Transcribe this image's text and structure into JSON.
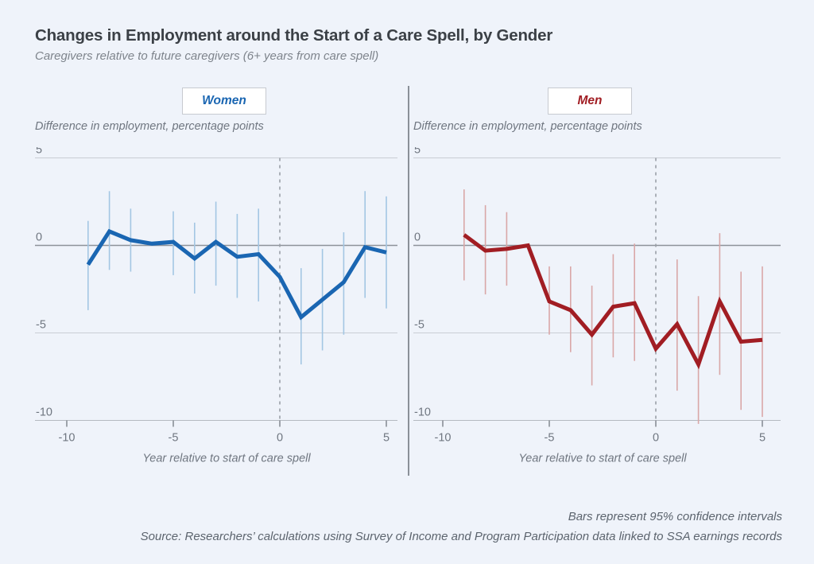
{
  "header": {
    "title": "Changes in Employment around the Start of a Care Spell, by Gender",
    "subtitle": "Caregivers relative to future caregivers (6+ years from care spell)"
  },
  "footnotes": {
    "note": "Bars represent 95% confidence intervals",
    "source": "Source: Researchers’ calculations using Survey of Income and Program Participation data linked to SSA earnings records"
  },
  "colors": {
    "background": "#eff3fa",
    "women_line": "#1a66b2",
    "women_ci": "#a3c6e3",
    "men_line": "#a11d23",
    "men_ci": "#d9a7a7",
    "gridline": "#c9cdd4",
    "zero_line": "#8d9299",
    "event_line": "#9aa0a7",
    "axis_text": "#6f7680"
  },
  "chart_data": [
    {
      "type": "line",
      "panel": "women",
      "label": "Women",
      "y_axis_title": "Difference in employment, percentage points",
      "x_axis_title": "Year relative to start of care spell",
      "x": [
        -9,
        -8,
        -7,
        -6,
        -5,
        -4,
        -3,
        -2,
        -1,
        0,
        1,
        2,
        3,
        4,
        5
      ],
      "values": [
        -1.1,
        0.8,
        0.3,
        0.1,
        0.2,
        -0.75,
        0.2,
        -0.65,
        -0.5,
        -1.8,
        -4.1,
        -3.1,
        -2.1,
        -0.1,
        -0.4
      ],
      "ci_low": [
        -3.7,
        -1.4,
        -1.5,
        null,
        -1.7,
        -2.75,
        -2.3,
        -3.0,
        -3.2,
        null,
        -6.8,
        -6.0,
        -5.1,
        -3.0,
        -3.6
      ],
      "ci_high": [
        1.4,
        3.1,
        2.1,
        null,
        1.95,
        1.3,
        2.5,
        1.8,
        2.1,
        null,
        -1.3,
        -0.2,
        0.75,
        3.1,
        2.8
      ],
      "x_ticks": [
        -10,
        -5,
        0,
        5
      ],
      "y_ticks": [
        5,
        0,
        -5,
        -10
      ],
      "xlim": [
        -10,
        5.5
      ],
      "ylim": [
        -10.5,
        5
      ],
      "event_line_x": 0,
      "line_color": "#1a66b2",
      "ci_color": "#a3c6e3",
      "grid": "horizontal-only",
      "legend_position": "top-center-boxed"
    },
    {
      "type": "line",
      "panel": "men",
      "label": "Men",
      "y_axis_title": "Difference in employment, percentage points",
      "x_axis_title": "Year relative to start of care spell",
      "x": [
        -9,
        -8,
        -7,
        -6,
        -5,
        -4,
        -3,
        -2,
        -1,
        0,
        1,
        2,
        3,
        4,
        5
      ],
      "values": [
        0.6,
        -0.3,
        -0.2,
        0.0,
        -3.2,
        -3.7,
        -5.1,
        -3.5,
        -3.3,
        -5.9,
        -4.5,
        -6.8,
        -3.2,
        -5.5,
        -5.4
      ],
      "ci_low": [
        -2.0,
        -2.8,
        -2.3,
        null,
        -5.1,
        -6.1,
        -8.0,
        -6.4,
        -6.6,
        null,
        -8.3,
        -10.2,
        -7.4,
        -9.4,
        -9.8
      ],
      "ci_high": [
        3.2,
        2.3,
        1.9,
        null,
        -1.2,
        -1.2,
        -2.3,
        -0.5,
        0.1,
        null,
        -0.8,
        -2.9,
        0.7,
        -1.5,
        -1.2
      ],
      "x_ticks": [
        -10,
        -5,
        0,
        5
      ],
      "y_ticks": [
        5,
        0,
        -5,
        -10
      ],
      "xlim": [
        -10,
        5.5
      ],
      "ylim": [
        -10.5,
        5
      ],
      "event_line_x": 0,
      "line_color": "#a11d23",
      "ci_color": "#d9a7a7",
      "grid": "horizontal-only",
      "legend_position": "top-center-boxed"
    }
  ]
}
